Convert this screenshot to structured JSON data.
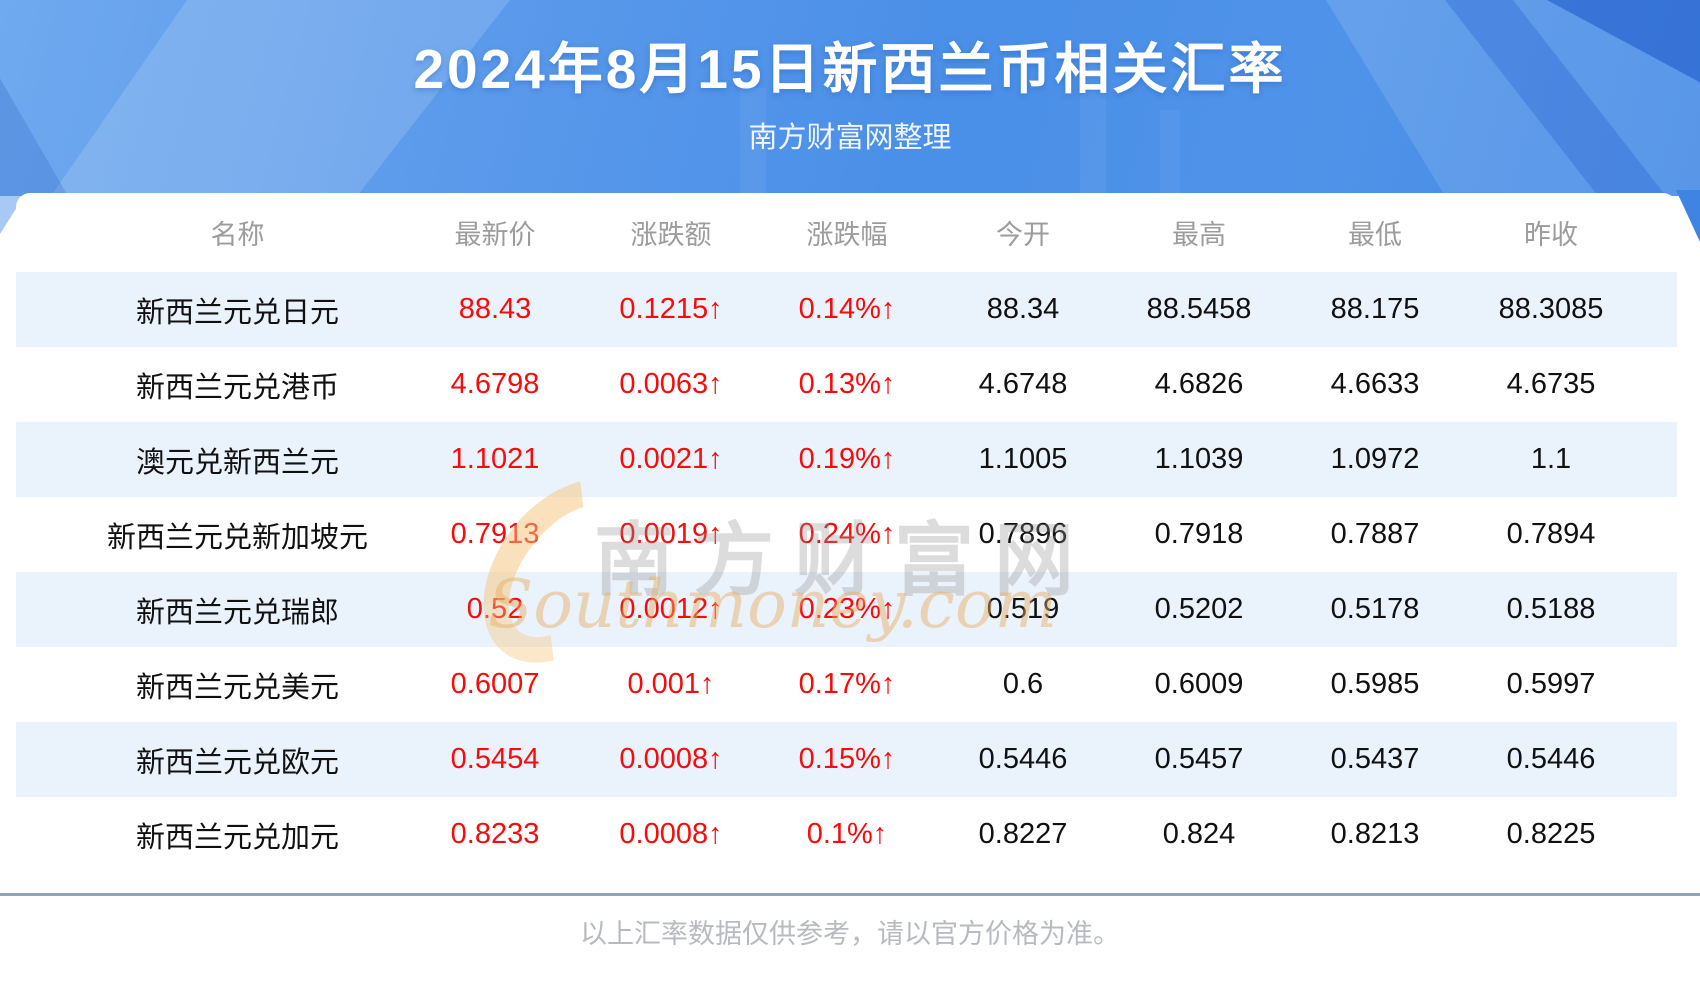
{
  "banner": {
    "title": "2024年8月15日新西兰币相关汇率",
    "subtitle": "南方财富网整理"
  },
  "watermark": {
    "cn": "南方财富网",
    "en": "Southmoney.com"
  },
  "footer": {
    "note": "以上汇率数据仅供参考，请以官方价格为准。"
  },
  "colors": {
    "up_red": "#f70b0b",
    "row_stripe": "#eaf2fc",
    "banner_blue": "#4a8fe8",
    "header_gray": "#9c9c9c",
    "divider_blue_gray": "#8ca2c2",
    "watermark_orange": "#e8aa5c"
  },
  "chart_data": {
    "type": "table",
    "title": "2024年8月15日新西兰币相关汇率",
    "columns": [
      "名称",
      "最新价",
      "涨跌额",
      "涨跌幅",
      "今开",
      "最高",
      "最低",
      "昨收"
    ],
    "rows": [
      [
        "新西兰元兑日元",
        "88.43",
        "0.1215↑",
        "0.14%↑",
        "88.34",
        "88.5458",
        "88.175",
        "88.3085"
      ],
      [
        "新西兰元兑港币",
        "4.6798",
        "0.0063↑",
        "0.13%↑",
        "4.6748",
        "4.6826",
        "4.6633",
        "4.6735"
      ],
      [
        "澳元兑新西兰元",
        "1.1021",
        "0.0021↑",
        "0.19%↑",
        "1.1005",
        "1.1039",
        "1.0972",
        "1.1"
      ],
      [
        "新西兰元兑新加坡元",
        "0.7913",
        "0.0019↑",
        "0.24%↑",
        "0.7896",
        "0.7918",
        "0.7887",
        "0.7894"
      ],
      [
        "新西兰元兑瑞郎",
        "0.52",
        "0.0012↑",
        "0.23%↑",
        "0.519",
        "0.5202",
        "0.5178",
        "0.5188"
      ],
      [
        "新西兰元兑美元",
        "0.6007",
        "0.001↑",
        "0.17%↑",
        "0.6",
        "0.6009",
        "0.5985",
        "0.5997"
      ],
      [
        "新西兰元兑欧元",
        "0.5454",
        "0.0008↑",
        "0.15%↑",
        "0.5446",
        "0.5457",
        "0.5437",
        "0.5446"
      ],
      [
        "新西兰元兑加元",
        "0.8233",
        "0.0008↑",
        "0.1%↑",
        "0.8227",
        "0.824",
        "0.8213",
        "0.8225"
      ]
    ],
    "red_value_columns": [
      1,
      2,
      3
    ],
    "striped_row_indexes": [
      0,
      2,
      4,
      6
    ]
  }
}
